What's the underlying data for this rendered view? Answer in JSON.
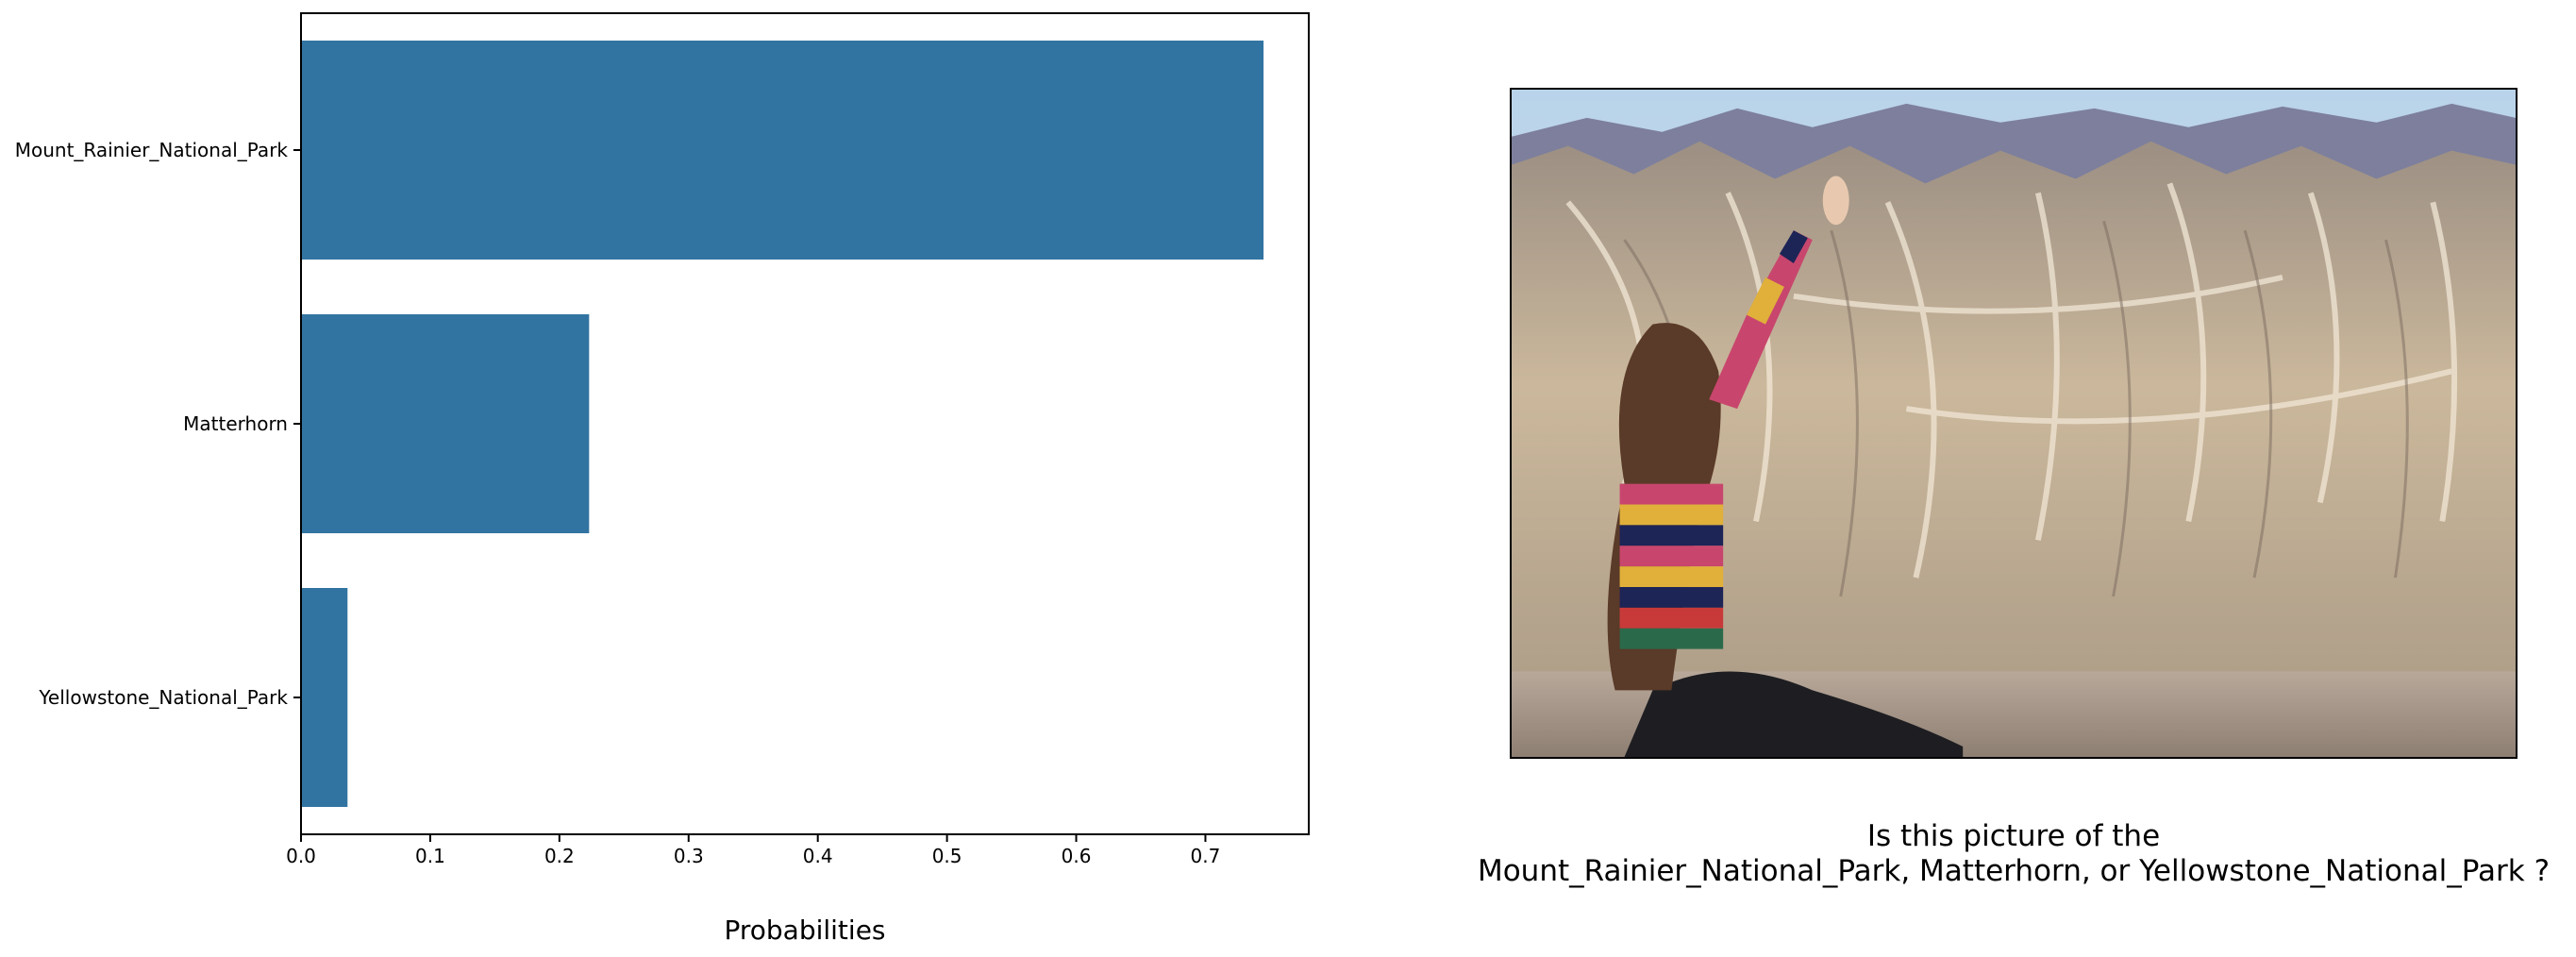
{
  "chart_data": {
    "type": "bar",
    "orientation": "horizontal",
    "categories": [
      "Mount_Rainier_National_Park",
      "Matterhorn",
      "Yellowstone_National_Park"
    ],
    "values": [
      0.745,
      0.223,
      0.036
    ],
    "xlabel": "Probabilities",
    "ylabel": "",
    "xlim": [
      0,
      0.78
    ],
    "xticks": [
      "0.0",
      "0.1",
      "0.2",
      "0.3",
      "0.4",
      "0.5",
      "0.6",
      "0.7"
    ],
    "grid": false,
    "bar_color": "#3274a1"
  },
  "image_panel": {
    "description_icon": "landscape-photo-icon"
  },
  "question": {
    "line1": "Is this picture of the",
    "line2": "Mount_Rainier_National_Park, Matterhorn, or Yellowstone_National_Park ?"
  }
}
